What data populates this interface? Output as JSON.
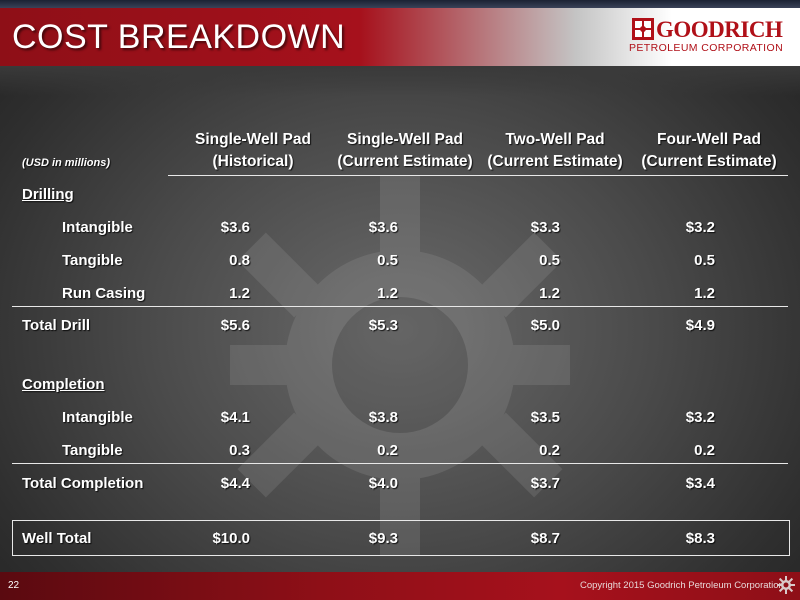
{
  "slide": {
    "title": "COST BREAKDOWN",
    "page_number": "22",
    "copyright": "Copyright 2015 Goodrich Petroleum Corporation"
  },
  "logo": {
    "name": "GOODRICH",
    "subtitle": "PETROLEUM CORPORATION"
  },
  "table": {
    "units_label": "(USD in millions)",
    "columns": [
      {
        "line1": "Single-Well Pad",
        "line2": "(Historical)"
      },
      {
        "line1": "Single-Well Pad",
        "line2": "(Current Estimate)"
      },
      {
        "line1": "Two-Well Pad",
        "line2": "(Current Estimate)"
      },
      {
        "line1": "Four-Well Pad",
        "line2": "(Current Estimate)"
      }
    ],
    "drilling_header": "Drilling",
    "drilling_rows": [
      {
        "label": "Intangible",
        "values": [
          "$3.6",
          "$3.6",
          "$3.3",
          "$3.2"
        ]
      },
      {
        "label": "Tangible",
        "values": [
          "0.8",
          "0.5",
          "0.5",
          "0.5"
        ]
      },
      {
        "label": "Run Casing",
        "values": [
          "1.2",
          "1.2",
          "1.2",
          "1.2"
        ]
      }
    ],
    "total_drill": {
      "label": "Total Drill",
      "values": [
        "$5.6",
        "$5.3",
        "$5.0",
        "$4.9"
      ]
    },
    "completion_header": "Completion",
    "completion_rows": [
      {
        "label": "Intangible",
        "values": [
          "$4.1",
          "$3.8",
          "$3.5",
          "$3.2"
        ]
      },
      {
        "label": "Tangible",
        "values": [
          "0.3",
          "0.2",
          "0.2",
          "0.2"
        ]
      }
    ],
    "total_completion": {
      "label": "Total Completion",
      "values": [
        "$4.4",
        "$4.0",
        "$3.7",
        "$3.4"
      ]
    },
    "well_total": {
      "label": "Well Total",
      "values": [
        "$10.0",
        "$9.3",
        "$8.7",
        "$8.3"
      ]
    }
  },
  "colors": {
    "header_red": "#a6111c",
    "logo_red": "#b01018"
  }
}
